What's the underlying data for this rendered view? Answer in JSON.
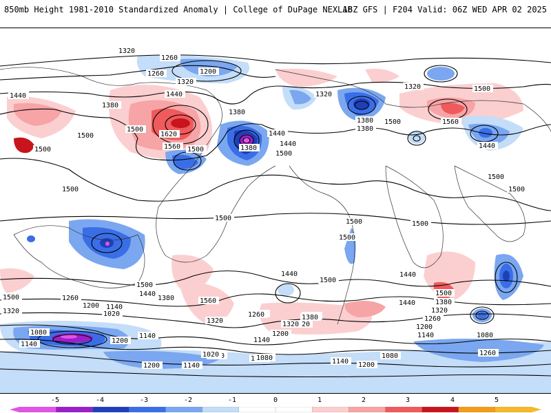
{
  "header": {
    "left_title": "850mb Height 1981-2010 Standardized Anomaly | College of DuPage NEXLAB",
    "right_title": "18Z GFS | F204 Valid: 06Z WED APR 02 2025"
  },
  "colors": {
    "anomaly_scale": [
      "#e254e6",
      "#9a20c8",
      "#1f3fb8",
      "#3a6ee6",
      "#7aa7f0",
      "#c4ddf8",
      "#ffffff",
      "#ffffff",
      "#fbcfd0",
      "#f7a4a6",
      "#ef5a5c",
      "#c8141c",
      "#f39c1a",
      "#f5b92b"
    ]
  },
  "colorbar": {
    "ticks": [
      "-5",
      "-4",
      "-3",
      "-2",
      "-1",
      "0",
      "1",
      "2",
      "3",
      "4",
      "5"
    ]
  },
  "contour_labels": [
    "1320",
    "1260",
    "1200",
    "1260",
    "1440",
    "1380",
    "1440",
    "1500",
    "1620",
    "1560",
    "1500",
    "1500",
    "1380",
    "1320",
    "1380",
    "1440",
    "1500",
    "1380",
    "1320",
    "1500",
    "1560",
    "1440",
    "1500",
    "1500",
    "1500",
    "1500",
    "1500",
    "1500",
    "1500",
    "1440",
    "1380",
    "1320",
    "1260",
    "1200",
    "1140",
    "1020",
    "1080",
    "1140",
    "1200",
    "1260",
    "1320",
    "1380",
    "1440",
    "1500",
    "1560",
    "1500",
    "1440",
    "1380",
    "1320",
    "1260",
    "1200",
    "1140",
    "1080",
    "1020",
    "1140",
    "1200",
    "1260",
    "1320",
    "1500",
    "1440",
    "1380",
    "1320",
    "1260",
    "1200",
    "1140",
    "1080",
    "1260",
    "1200",
    "1140",
    "1080",
    "1140",
    "1020",
    "1080",
    "1140",
    "1200",
    "1500",
    "1500",
    "1500",
    "1380",
    "1320",
    "1440"
  ]
}
